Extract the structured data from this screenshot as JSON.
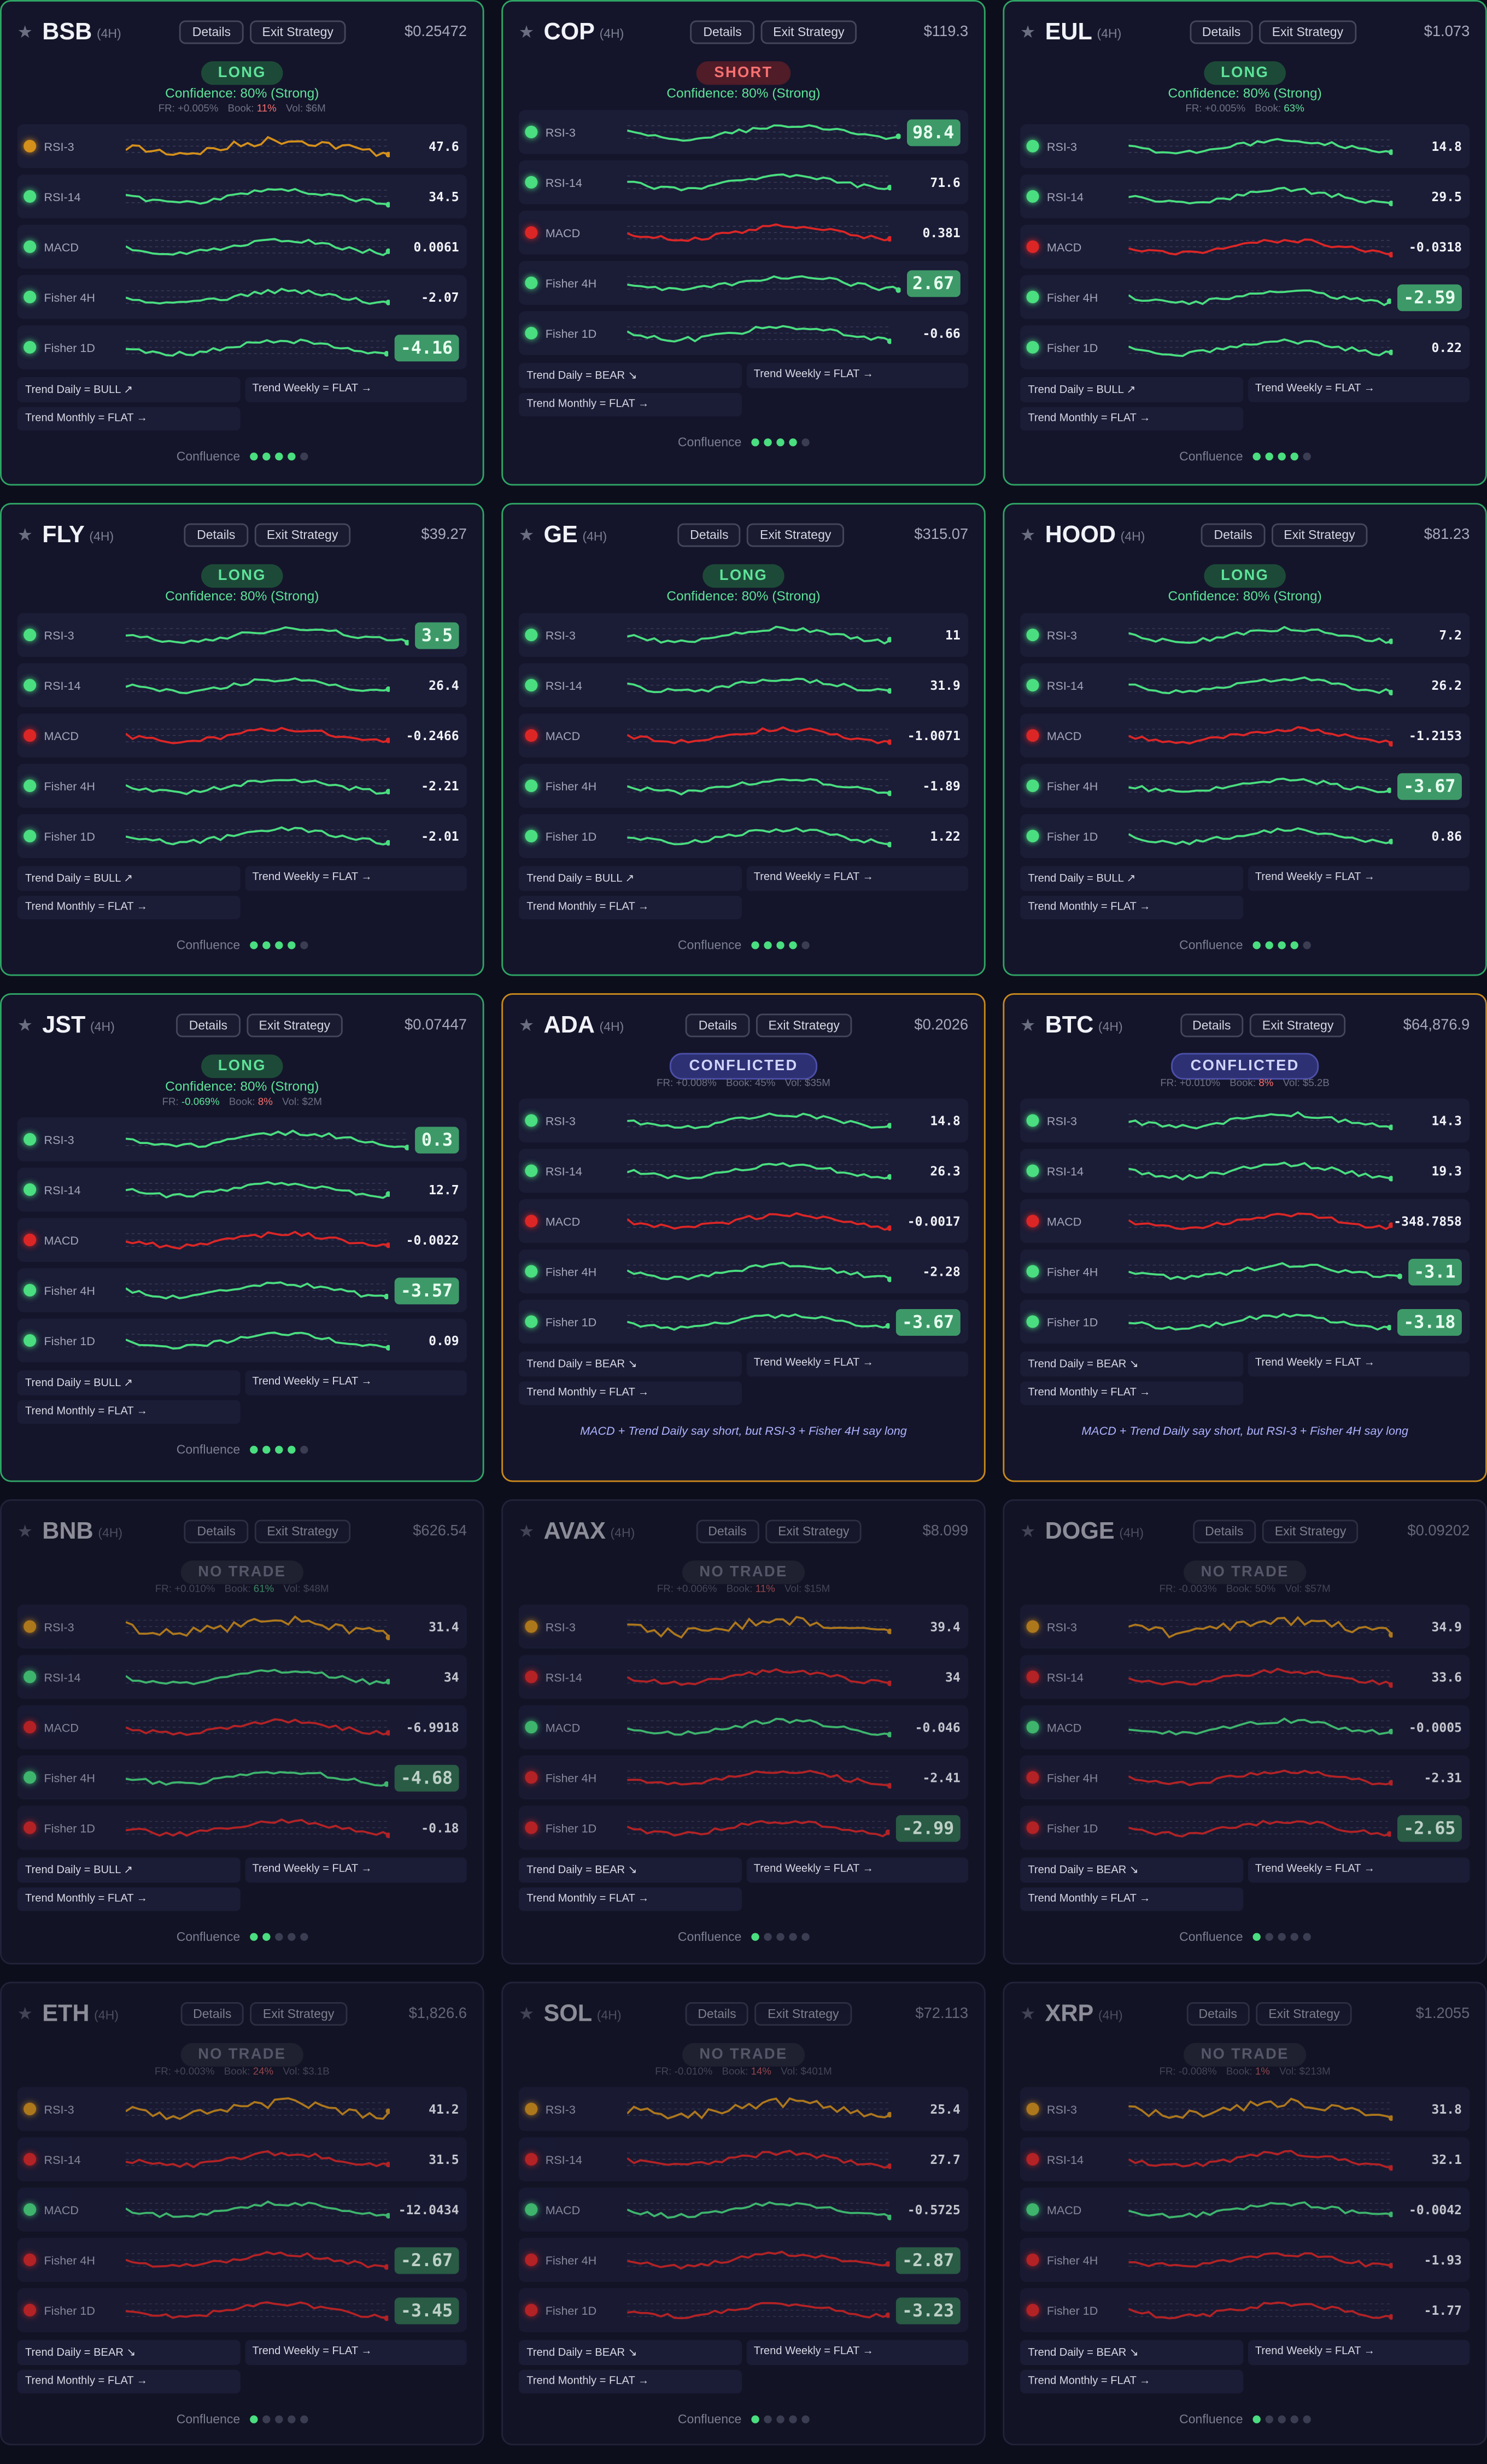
{
  "indicators": [
    "RSI-3",
    "RSI-14",
    "MACD",
    "Fisher 4H",
    "Fisher 1D"
  ],
  "buttons": [
    "Details",
    "Exit Strategy"
  ],
  "labels": {
    "confluence": "Confluence",
    "star": "★"
  },
  "confluence_max": 5,
  "cards": [
    {
      "ticker": "BSB",
      "timeframe": "(4H)",
      "price": "$0.25472",
      "signal": "LONG",
      "status": "long",
      "confidence": "Confidence: 80% (Strong)",
      "info": [
        {
          "label": "FR:",
          "value": "+0.005%"
        },
        {
          "label": "Book:",
          "value": "11%",
          "tone": "red"
        },
        {
          "label": "Vol:",
          "value": "$6M"
        }
      ],
      "rows": [
        {
          "value": "47.6",
          "state": "orange"
        },
        {
          "value": "34.5",
          "state": "green"
        },
        {
          "value": "0.0061",
          "state": "green"
        },
        {
          "value": "-2.07",
          "state": "green"
        },
        {
          "value": "-4.16",
          "state": "green",
          "highlight": true
        }
      ],
      "trends": [
        "Trend Daily = BULL ↗",
        "Trend Weekly = FLAT →",
        "Trend Monthly = FLAT →"
      ],
      "confluence": 4
    },
    {
      "ticker": "COP",
      "timeframe": "(4H)",
      "price": "$119.3",
      "signal": "SHORT",
      "status": "short",
      "confidence": "Confidence: 80% (Strong)",
      "rows": [
        {
          "value": "98.4",
          "state": "green",
          "highlight": true
        },
        {
          "value": "71.6",
          "state": "green"
        },
        {
          "value": "0.381",
          "state": "red"
        },
        {
          "value": "2.67",
          "state": "green",
          "highlight": true
        },
        {
          "value": "-0.66",
          "state": "green"
        }
      ],
      "trends": [
        "Trend Daily = BEAR ↘",
        "Trend Weekly = FLAT →",
        "Trend Monthly = FLAT →"
      ],
      "confluence": 4
    },
    {
      "ticker": "EUL",
      "timeframe": "(4H)",
      "price": "$1.073",
      "signal": "LONG",
      "status": "long",
      "confidence": "Confidence: 80% (Strong)",
      "info": [
        {
          "label": "FR:",
          "value": "+0.005%"
        },
        {
          "label": "Book:",
          "value": "63%",
          "tone": "green"
        }
      ],
      "rows": [
        {
          "value": "14.8",
          "state": "green"
        },
        {
          "value": "29.5",
          "state": "green"
        },
        {
          "value": "-0.0318",
          "state": "red"
        },
        {
          "value": "-2.59",
          "state": "green",
          "highlight": true
        },
        {
          "value": "0.22",
          "state": "green"
        }
      ],
      "trends": [
        "Trend Daily = BULL ↗",
        "Trend Weekly = FLAT →",
        "Trend Monthly = FLAT →"
      ],
      "confluence": 4
    },
    {
      "ticker": "FLY",
      "timeframe": "(4H)",
      "price": "$39.27",
      "signal": "LONG",
      "status": "long",
      "confidence": "Confidence: 80% (Strong)",
      "rows": [
        {
          "value": "3.5",
          "state": "green",
          "highlight": true
        },
        {
          "value": "26.4",
          "state": "green"
        },
        {
          "value": "-0.2466",
          "state": "red"
        },
        {
          "value": "-2.21",
          "state": "green"
        },
        {
          "value": "-2.01",
          "state": "green"
        }
      ],
      "trends": [
        "Trend Daily = BULL ↗",
        "Trend Weekly = FLAT →",
        "Trend Monthly = FLAT →"
      ],
      "confluence": 4
    },
    {
      "ticker": "GE",
      "timeframe": "(4H)",
      "price": "$315.07",
      "signal": "LONG",
      "status": "long",
      "confidence": "Confidence: 80% (Strong)",
      "rows": [
        {
          "value": "11",
          "state": "green"
        },
        {
          "value": "31.9",
          "state": "green"
        },
        {
          "value": "-1.0071",
          "state": "red"
        },
        {
          "value": "-1.89",
          "state": "green"
        },
        {
          "value": "1.22",
          "state": "green"
        }
      ],
      "trends": [
        "Trend Daily = BULL ↗",
        "Trend Weekly = FLAT →",
        "Trend Monthly = FLAT →"
      ],
      "confluence": 4
    },
    {
      "ticker": "HOOD",
      "timeframe": "(4H)",
      "price": "$81.23",
      "signal": "LONG",
      "status": "long",
      "confidence": "Confidence: 80% (Strong)",
      "rows": [
        {
          "value": "7.2",
          "state": "green"
        },
        {
          "value": "26.2",
          "state": "green"
        },
        {
          "value": "-1.2153",
          "state": "red"
        },
        {
          "value": "-3.67",
          "state": "green",
          "highlight": true
        },
        {
          "value": "0.86",
          "state": "green"
        }
      ],
      "trends": [
        "Trend Daily = BULL ↗",
        "Trend Weekly = FLAT →",
        "Trend Monthly = FLAT →"
      ],
      "confluence": 4
    },
    {
      "ticker": "JST",
      "timeframe": "(4H)",
      "price": "$0.07447",
      "signal": "LONG",
      "status": "long",
      "confidence": "Confidence: 80% (Strong)",
      "info": [
        {
          "label": "FR:",
          "value": "-0.069%",
          "tone": "green"
        },
        {
          "label": "Book:",
          "value": "8%",
          "tone": "red"
        },
        {
          "label": "Vol:",
          "value": "$2M"
        }
      ],
      "rows": [
        {
          "value": "0.3",
          "state": "green",
          "highlight": true
        },
        {
          "value": "12.7",
          "state": "green"
        },
        {
          "value": "-0.0022",
          "state": "red"
        },
        {
          "value": "-3.57",
          "state": "green",
          "highlight": true
        },
        {
          "value": "0.09",
          "state": "green"
        }
      ],
      "trends": [
        "Trend Daily = BULL ↗",
        "Trend Weekly = FLAT →",
        "Trend Monthly = FLAT →"
      ],
      "confluence": 4
    },
    {
      "ticker": "ADA",
      "timeframe": "(4H)",
      "price": "$0.2026",
      "signal": "CONFLICTED",
      "status": "conflicted",
      "info": [
        {
          "label": "FR:",
          "value": "+0.008%"
        },
        {
          "label": "Book:",
          "value": "45%"
        },
        {
          "label": "Vol:",
          "value": "$35M"
        }
      ],
      "rows": [
        {
          "value": "14.8",
          "state": "green"
        },
        {
          "value": "26.3",
          "state": "green"
        },
        {
          "value": "-0.0017",
          "state": "red"
        },
        {
          "value": "-2.28",
          "state": "green"
        },
        {
          "value": "-3.67",
          "state": "green",
          "highlight": true
        }
      ],
      "trends": [
        "Trend Daily = BEAR ↘",
        "Trend Weekly = FLAT →",
        "Trend Monthly = FLAT →"
      ],
      "note": "MACD + Trend Daily say short, but RSI-3 + Fisher 4H say long"
    },
    {
      "ticker": "BTC",
      "timeframe": "(4H)",
      "price": "$64,876.9",
      "signal": "CONFLICTED",
      "status": "conflicted",
      "info": [
        {
          "label": "FR:",
          "value": "+0.010%"
        },
        {
          "label": "Book:",
          "value": "8%",
          "tone": "red"
        },
        {
          "label": "Vol:",
          "value": "$5.2B"
        }
      ],
      "rows": [
        {
          "value": "14.3",
          "state": "green"
        },
        {
          "value": "19.3",
          "state": "green"
        },
        {
          "value": "-348.7858",
          "state": "red"
        },
        {
          "value": "-3.1",
          "state": "green",
          "highlight": true
        },
        {
          "value": "-3.18",
          "state": "green",
          "highlight": true
        }
      ],
      "trends": [
        "Trend Daily = BEAR ↘",
        "Trend Weekly = FLAT →",
        "Trend Monthly = FLAT →"
      ],
      "note": "MACD + Trend Daily say short, but RSI-3 + Fisher 4H say long"
    },
    {
      "ticker": "BNB",
      "timeframe": "(4H)",
      "price": "$626.54",
      "signal": "NO TRADE",
      "status": "idle",
      "info": [
        {
          "label": "FR:",
          "value": "+0.010%"
        },
        {
          "label": "Book:",
          "value": "61%",
          "tone": "green"
        },
        {
          "label": "Vol:",
          "value": "$48M"
        }
      ],
      "rows": [
        {
          "value": "31.4",
          "state": "orange"
        },
        {
          "value": "34",
          "state": "green"
        },
        {
          "value": "-6.9918",
          "state": "red"
        },
        {
          "value": "-4.68",
          "state": "green",
          "highlight": true
        },
        {
          "value": "-0.18",
          "state": "red"
        }
      ],
      "trends": [
        "Trend Daily = BULL ↗",
        "Trend Weekly = FLAT →",
        "Trend Monthly = FLAT →"
      ],
      "confluence": 2
    },
    {
      "ticker": "AVAX",
      "timeframe": "(4H)",
      "price": "$8.099",
      "signal": "NO TRADE",
      "status": "idle",
      "info": [
        {
          "label": "FR:",
          "value": "+0.006%"
        },
        {
          "label": "Book:",
          "value": "11%",
          "tone": "red"
        },
        {
          "label": "Vol:",
          "value": "$15M"
        }
      ],
      "rows": [
        {
          "value": "39.4",
          "state": "orange"
        },
        {
          "value": "34",
          "state": "red"
        },
        {
          "value": "-0.046",
          "state": "green"
        },
        {
          "value": "-2.41",
          "state": "red"
        },
        {
          "value": "-2.99",
          "state": "red",
          "highlight": true
        }
      ],
      "trends": [
        "Trend Daily = BEAR ↘",
        "Trend Weekly = FLAT →",
        "Trend Monthly = FLAT →"
      ],
      "confluence": 1
    },
    {
      "ticker": "DOGE",
      "timeframe": "(4H)",
      "price": "$0.09202",
      "signal": "NO TRADE",
      "status": "idle",
      "info": [
        {
          "label": "FR:",
          "value": "-0.003%"
        },
        {
          "label": "Book:",
          "value": "50%"
        },
        {
          "label": "Vol:",
          "value": "$57M"
        }
      ],
      "rows": [
        {
          "value": "34.9",
          "state": "orange"
        },
        {
          "value": "33.6",
          "state": "red"
        },
        {
          "value": "-0.0005",
          "state": "green"
        },
        {
          "value": "-2.31",
          "state": "red"
        },
        {
          "value": "-2.65",
          "state": "red",
          "highlight": true
        }
      ],
      "trends": [
        "Trend Daily = BEAR ↘",
        "Trend Weekly = FLAT →",
        "Trend Monthly = FLAT →"
      ],
      "confluence": 1
    },
    {
      "ticker": "ETH",
      "timeframe": "(4H)",
      "price": "$1,826.6",
      "signal": "NO TRADE",
      "status": "idle",
      "info": [
        {
          "label": "FR:",
          "value": "+0.003%"
        },
        {
          "label": "Book:",
          "value": "24%",
          "tone": "red"
        },
        {
          "label": "Vol:",
          "value": "$3.1B"
        }
      ],
      "rows": [
        {
          "value": "41.2",
          "state": "orange"
        },
        {
          "value": "31.5",
          "state": "red"
        },
        {
          "value": "-12.0434",
          "state": "green"
        },
        {
          "value": "-2.67",
          "state": "red",
          "highlight": true
        },
        {
          "value": "-3.45",
          "state": "red",
          "highlight": true
        }
      ],
      "trends": [
        "Trend Daily = BEAR ↘",
        "Trend Weekly = FLAT →",
        "Trend Monthly = FLAT →"
      ],
      "confluence": 1
    },
    {
      "ticker": "SOL",
      "timeframe": "(4H)",
      "price": "$72.113",
      "signal": "NO TRADE",
      "status": "idle",
      "info": [
        {
          "label": "FR:",
          "value": "-0.010%"
        },
        {
          "label": "Book:",
          "value": "14%",
          "tone": "red"
        },
        {
          "label": "Vol:",
          "value": "$401M"
        }
      ],
      "rows": [
        {
          "value": "25.4",
          "state": "orange"
        },
        {
          "value": "27.7",
          "state": "red"
        },
        {
          "value": "-0.5725",
          "state": "green"
        },
        {
          "value": "-2.87",
          "state": "red",
          "highlight": true
        },
        {
          "value": "-3.23",
          "state": "red",
          "highlight": true
        }
      ],
      "trends": [
        "Trend Daily = BEAR ↘",
        "Trend Weekly = FLAT →",
        "Trend Monthly = FLAT →"
      ],
      "confluence": 1
    },
    {
      "ticker": "XRP",
      "timeframe": "(4H)",
      "price": "$1.2055",
      "signal": "NO TRADE",
      "status": "idle",
      "info": [
        {
          "label": "FR:",
          "value": "-0.008%"
        },
        {
          "label": "Book:",
          "value": "1%",
          "tone": "red"
        },
        {
          "label": "Vol:",
          "value": "$213M"
        }
      ],
      "rows": [
        {
          "value": "31.8",
          "state": "orange"
        },
        {
          "value": "32.1",
          "state": "red"
        },
        {
          "value": "-0.0042",
          "state": "green"
        },
        {
          "value": "-1.93",
          "state": "red"
        },
        {
          "value": "-1.77",
          "state": "red"
        }
      ],
      "trends": [
        "Trend Daily = BEAR ↘",
        "Trend Weekly = FLAT →",
        "Trend Monthly = FLAT →"
      ],
      "confluence": 1
    }
  ]
}
